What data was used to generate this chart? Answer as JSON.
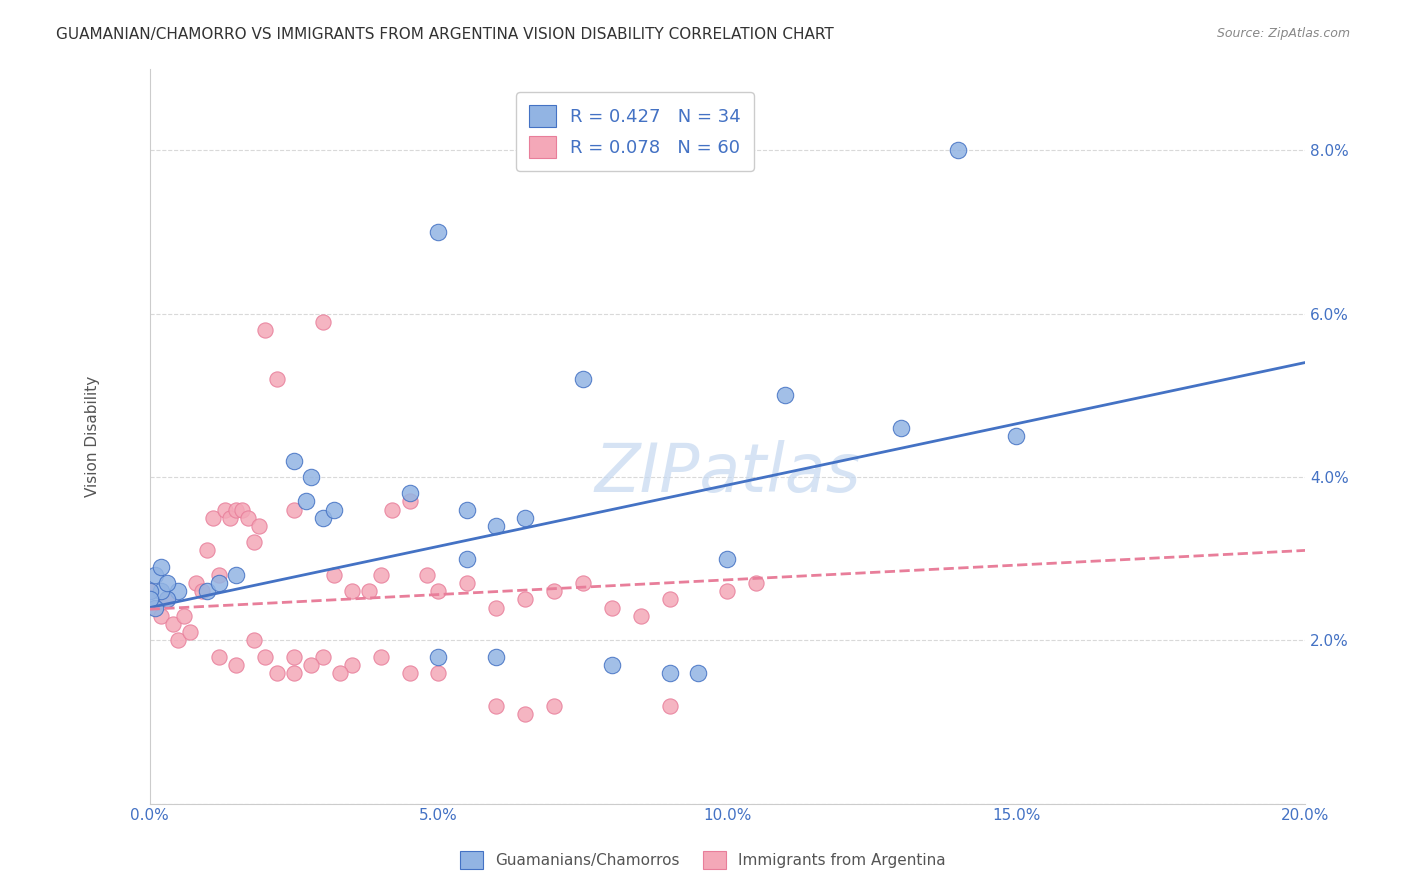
{
  "title": "GUAMANIAN/CHAMORRO VS IMMIGRANTS FROM ARGENTINA VISION DISABILITY CORRELATION CHART",
  "source": "Source: ZipAtlas.com",
  "xlabel": "",
  "ylabel": "Vision Disability",
  "watermark": "ZIPatlas",
  "xlim": [
    0.0,
    0.2
  ],
  "ylim": [
    0.0,
    0.09
  ],
  "xticks": [
    0.0,
    0.05,
    0.1,
    0.15,
    0.2
  ],
  "xticklabels": [
    "0.0%",
    "5.0%",
    "10.0%",
    "15.0%",
    "20.0%"
  ],
  "yticks": [
    0.0,
    0.02,
    0.04,
    0.06,
    0.08
  ],
  "yticklabels": [
    "",
    "2.0%",
    "4.0%",
    "6.0%",
    "8.0%"
  ],
  "blue_R": 0.427,
  "blue_N": 34,
  "pink_R": 0.078,
  "pink_N": 60,
  "blue_color": "#92b4e3",
  "pink_color": "#f4a8b8",
  "blue_line_color": "#4472c4",
  "pink_line_color": "#e87e9a",
  "blue_scatter": [
    [
      0.01,
      0.026
    ],
    [
      0.012,
      0.027
    ],
    [
      0.015,
      0.028
    ],
    [
      0.005,
      0.026
    ],
    [
      0.003,
      0.025
    ],
    [
      0.002,
      0.026
    ],
    [
      0.001,
      0.024
    ],
    [
      0.0,
      0.026
    ],
    [
      0.0,
      0.025
    ],
    [
      0.001,
      0.028
    ],
    [
      0.002,
      0.029
    ],
    [
      0.003,
      0.027
    ],
    [
      0.025,
      0.042
    ],
    [
      0.028,
      0.04
    ],
    [
      0.027,
      0.037
    ],
    [
      0.03,
      0.035
    ],
    [
      0.032,
      0.036
    ],
    [
      0.045,
      0.038
    ],
    [
      0.055,
      0.036
    ],
    [
      0.06,
      0.034
    ],
    [
      0.065,
      0.035
    ],
    [
      0.055,
      0.03
    ],
    [
      0.05,
      0.018
    ],
    [
      0.06,
      0.018
    ],
    [
      0.075,
      0.052
    ],
    [
      0.08,
      0.017
    ],
    [
      0.09,
      0.016
    ],
    [
      0.1,
      0.03
    ],
    [
      0.095,
      0.016
    ],
    [
      0.11,
      0.05
    ],
    [
      0.13,
      0.046
    ],
    [
      0.15,
      0.045
    ],
    [
      0.14,
      0.08
    ],
    [
      0.05,
      0.07
    ]
  ],
  "pink_scatter": [
    [
      0.0,
      0.026
    ],
    [
      0.001,
      0.024
    ],
    [
      0.002,
      0.023
    ],
    [
      0.003,
      0.025
    ],
    [
      0.004,
      0.022
    ],
    [
      0.005,
      0.02
    ],
    [
      0.006,
      0.023
    ],
    [
      0.007,
      0.021
    ],
    [
      0.008,
      0.027
    ],
    [
      0.009,
      0.026
    ],
    [
      0.01,
      0.031
    ],
    [
      0.011,
      0.035
    ],
    [
      0.012,
      0.028
    ],
    [
      0.013,
      0.036
    ],
    [
      0.014,
      0.035
    ],
    [
      0.015,
      0.036
    ],
    [
      0.016,
      0.036
    ],
    [
      0.017,
      0.035
    ],
    [
      0.018,
      0.032
    ],
    [
      0.019,
      0.034
    ],
    [
      0.02,
      0.058
    ],
    [
      0.022,
      0.052
    ],
    [
      0.025,
      0.036
    ],
    [
      0.03,
      0.059
    ],
    [
      0.032,
      0.028
    ],
    [
      0.035,
      0.026
    ],
    [
      0.038,
      0.026
    ],
    [
      0.04,
      0.028
    ],
    [
      0.042,
      0.036
    ],
    [
      0.045,
      0.037
    ],
    [
      0.048,
      0.028
    ],
    [
      0.05,
      0.026
    ],
    [
      0.055,
      0.027
    ],
    [
      0.06,
      0.024
    ],
    [
      0.065,
      0.025
    ],
    [
      0.07,
      0.026
    ],
    [
      0.025,
      0.018
    ],
    [
      0.03,
      0.018
    ],
    [
      0.035,
      0.017
    ],
    [
      0.04,
      0.018
    ],
    [
      0.045,
      0.016
    ],
    [
      0.05,
      0.016
    ],
    [
      0.015,
      0.017
    ],
    [
      0.02,
      0.018
    ],
    [
      0.025,
      0.016
    ],
    [
      0.012,
      0.018
    ],
    [
      0.018,
      0.02
    ],
    [
      0.022,
      0.016
    ],
    [
      0.028,
      0.017
    ],
    [
      0.033,
      0.016
    ],
    [
      0.06,
      0.012
    ],
    [
      0.065,
      0.011
    ],
    [
      0.07,
      0.012
    ],
    [
      0.09,
      0.012
    ],
    [
      0.075,
      0.027
    ],
    [
      0.08,
      0.024
    ],
    [
      0.085,
      0.023
    ],
    [
      0.09,
      0.025
    ],
    [
      0.1,
      0.026
    ],
    [
      0.105,
      0.027
    ]
  ],
  "blue_line": [
    [
      0.0,
      0.024
    ],
    [
      0.2,
      0.054
    ]
  ],
  "pink_line": [
    [
      0.0,
      0.0238
    ],
    [
      0.2,
      0.031
    ]
  ],
  "background_color": "#ffffff",
  "grid_color": "#d9d9d9",
  "title_fontsize": 11,
  "axis_label_fontsize": 11,
  "tick_fontsize": 11,
  "legend_fontsize": 13,
  "watermark_fontsize": 48,
  "watermark_color": "#c5d8f0",
  "right_ytick_color": "#4472c4",
  "bottom_legend_labels": [
    "Guamanians/Chamorros",
    "Immigrants from Argentina"
  ]
}
